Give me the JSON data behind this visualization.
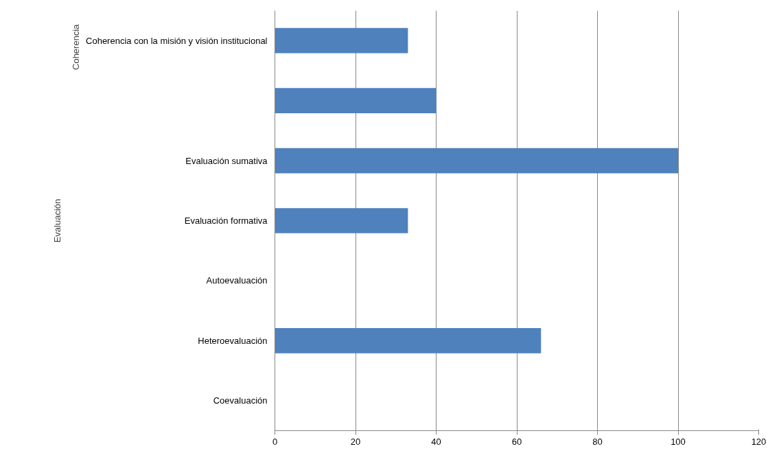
{
  "chart_data": {
    "type": "bar",
    "orientation": "horizontal",
    "categories": [
      "Coherencia con la misión y visión institucional",
      null,
      "Evaluación sumativa",
      "Evaluación formativa",
      "Autoevaluación",
      "Heteroevaluación",
      "Coevaluación"
    ],
    "values": [
      33,
      40,
      100,
      33,
      0,
      66,
      0
    ],
    "color": "#4f81bd",
    "xlim": [
      0,
      120
    ],
    "xticks": [
      0,
      20,
      40,
      60,
      80,
      100,
      120
    ],
    "grid": "x",
    "annotations": [
      "Coherencia",
      "Evaluación"
    ]
  }
}
